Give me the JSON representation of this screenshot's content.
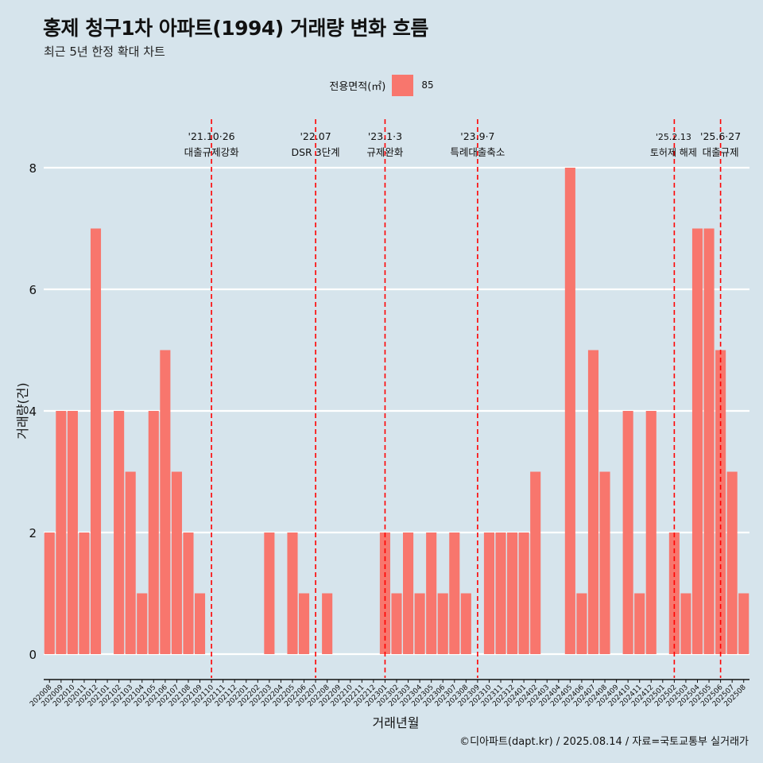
{
  "title": "홍제 청구1차 아파트(1994) 거래량 변화 흐름",
  "subtitle": "최근 5년 한정 확대 차트",
  "legend": {
    "title": "전용면적(㎡)",
    "label": "85"
  },
  "caption": "©디아파트(dapt.kr) / 2025.08.14 / 자료=국토교통부 실거래가",
  "colors": {
    "bar": "#f8766d",
    "event_line": "#ff0000",
    "background": "#d6e4ec",
    "grid": "#ffffff"
  },
  "chart_data": {
    "type": "bar",
    "xlabel": "거래년월",
    "ylabel": "거래량(건)",
    "ylim": [
      0,
      8
    ],
    "yticks": [
      0,
      2,
      4,
      6,
      8
    ],
    "grid": "horizontal",
    "legend_position": "top",
    "categories": [
      "202008",
      "202009",
      "202010",
      "202011",
      "202012",
      "202101",
      "202102",
      "202103",
      "202104",
      "202105",
      "202106",
      "202107",
      "202108",
      "202109",
      "202110",
      "202111",
      "202112",
      "202201",
      "202202",
      "202203",
      "202204",
      "202205",
      "202206",
      "202207",
      "202208",
      "202209",
      "202210",
      "202211",
      "202212",
      "202301",
      "202302",
      "202303",
      "202304",
      "202305",
      "202306",
      "202307",
      "202308",
      "202309",
      "202310",
      "202311",
      "202312",
      "202401",
      "202402",
      "202403",
      "202404",
      "202405",
      "202406",
      "202407",
      "202408",
      "202409",
      "202410",
      "202411",
      "202412",
      "202501",
      "202502",
      "202503",
      "202504",
      "202505",
      "202506",
      "202507",
      "202508"
    ],
    "series": [
      {
        "name": "85",
        "values": [
          2,
          4,
          4,
          2,
          7,
          0,
          4,
          3,
          1,
          4,
          5,
          3,
          2,
          1,
          0,
          0,
          0,
          0,
          0,
          2,
          0,
          2,
          1,
          0,
          1,
          0,
          0,
          0,
          0,
          2,
          1,
          2,
          1,
          2,
          1,
          2,
          1,
          0,
          2,
          2,
          2,
          2,
          3,
          0,
          0,
          8,
          1,
          5,
          3,
          0,
          4,
          1,
          4,
          0,
          2,
          1,
          7,
          7,
          5,
          3,
          1
        ]
      }
    ],
    "events": [
      {
        "x": "202110",
        "date": "'21.10·26",
        "label": "대출규제강화"
      },
      {
        "x": "202207",
        "date": "'22.07",
        "label": "DSR 3단계"
      },
      {
        "x": "202301",
        "date": "'23.1·3",
        "label": "규제완화"
      },
      {
        "x": "202309",
        "date": "'23.9·7",
        "label": "특례대출축소"
      },
      {
        "x": "202502",
        "date": "'25.2.13",
        "label": "토허제 해제"
      },
      {
        "x": "202506",
        "date": "'25.6·27",
        "label": "대출규제"
      }
    ]
  }
}
